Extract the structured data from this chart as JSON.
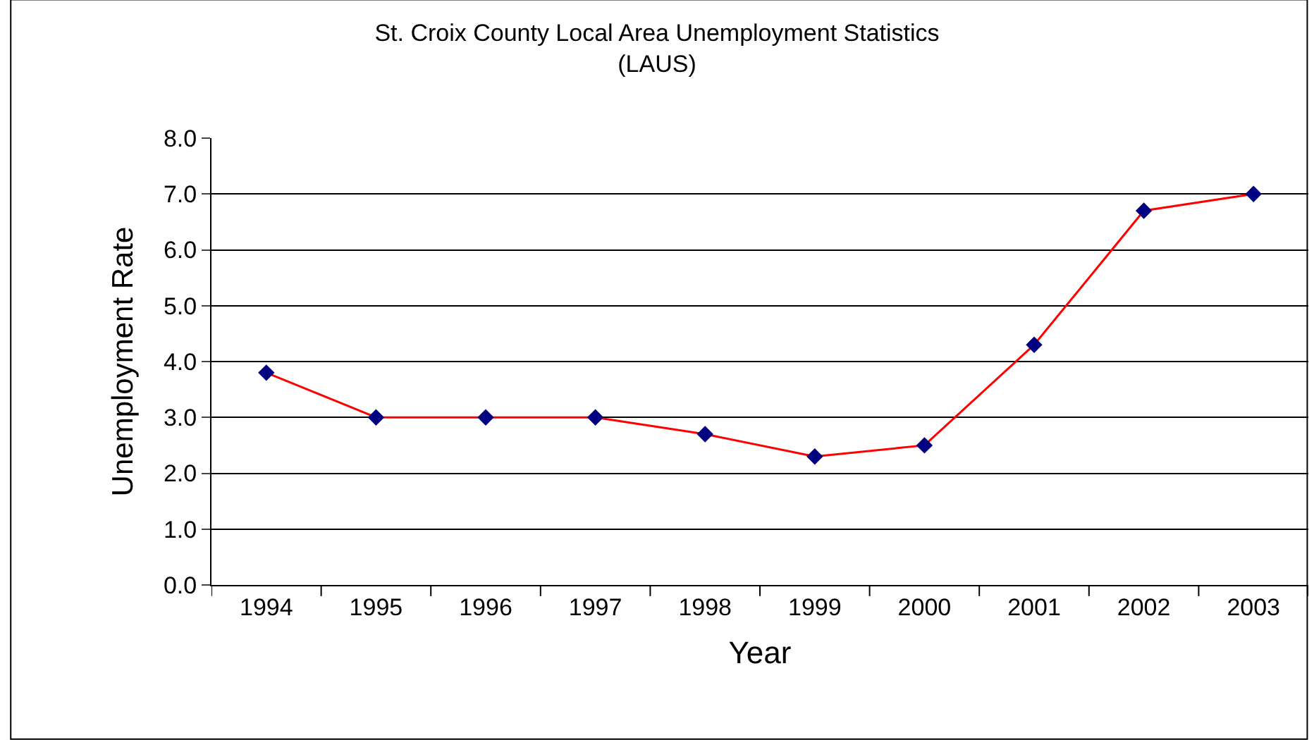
{
  "chart_data": {
    "type": "line",
    "title": "St. Croix County Local Area Unemployment Statistics\n(LAUS)",
    "xlabel": "Year",
    "ylabel": "Unemployment Rate",
    "categories": [
      "1994",
      "1995",
      "1996",
      "1997",
      "1998",
      "1999",
      "2000",
      "2001",
      "2002",
      "2003"
    ],
    "series": [
      {
        "color": "#ff0000",
        "colors": [
          "#000080",
          "#000080",
          "#000080",
          "#000080",
          "#000080",
          "#000080",
          "#000080",
          "#000080",
          "#000080",
          "#000080"
        ],
        "values": [
          3.8,
          3.0,
          3.0,
          3.0,
          2.7,
          2.3,
          2.5,
          4.3,
          6.7,
          7.0
        ]
      }
    ],
    "marker": "diamond",
    "line_style": "solid",
    "ylim": [
      0,
      8
    ],
    "yticks": [
      {
        "value": 0,
        "label": "0.0"
      },
      {
        "value": 1,
        "label": "1.0"
      },
      {
        "value": 2,
        "label": "2.0"
      },
      {
        "value": 3,
        "label": "3.0"
      },
      {
        "value": 4,
        "label": "4.0"
      },
      {
        "value": 5,
        "label": "5.0"
      },
      {
        "value": 6,
        "label": "6.0"
      },
      {
        "value": 7,
        "label": "7.0"
      },
      {
        "value": 8,
        "label": "8.0"
      }
    ],
    "grid": "y",
    "legend": false
  }
}
